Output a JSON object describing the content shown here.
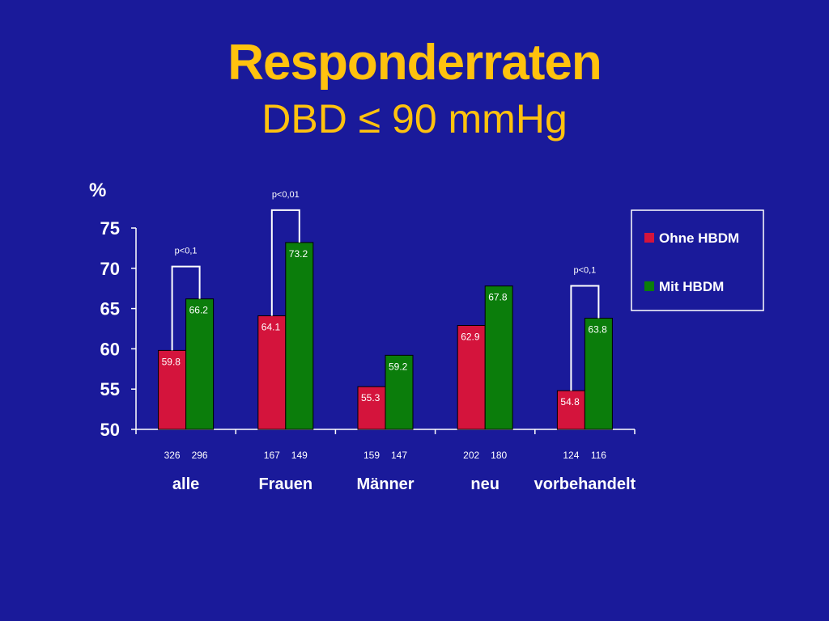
{
  "slide": {
    "title": "Responderraten",
    "subtitle": "DBD ≤ 90 mmHg"
  },
  "chart_data": {
    "type": "bar",
    "ylabel": "%",
    "ylim": [
      50,
      75
    ],
    "yticks": [
      50,
      55,
      60,
      65,
      70,
      75
    ],
    "categories": [
      "alle",
      "Frauen",
      "Männer",
      "neu",
      "vorbehandelt"
    ],
    "series": [
      {
        "name": "Ohne HBDM",
        "color": "#d4143c",
        "values": [
          59.8,
          64.1,
          55.3,
          62.9,
          54.8
        ],
        "n": [
          "326",
          "167",
          "159",
          "202",
          "124"
        ]
      },
      {
        "name": "Mit HBDM",
        "color": "#0b7d0b",
        "values": [
          66.2,
          73.2,
          59.2,
          67.8,
          63.8
        ],
        "n": [
          "296",
          "149",
          "147",
          "180",
          "116"
        ]
      }
    ],
    "annotations": [
      {
        "category": "alle",
        "label": "p<0,1"
      },
      {
        "category": "Frauen",
        "label": "p<0,01"
      },
      {
        "category": "vorbehandelt",
        "label": "p<0,1"
      }
    ],
    "legend": "right"
  }
}
